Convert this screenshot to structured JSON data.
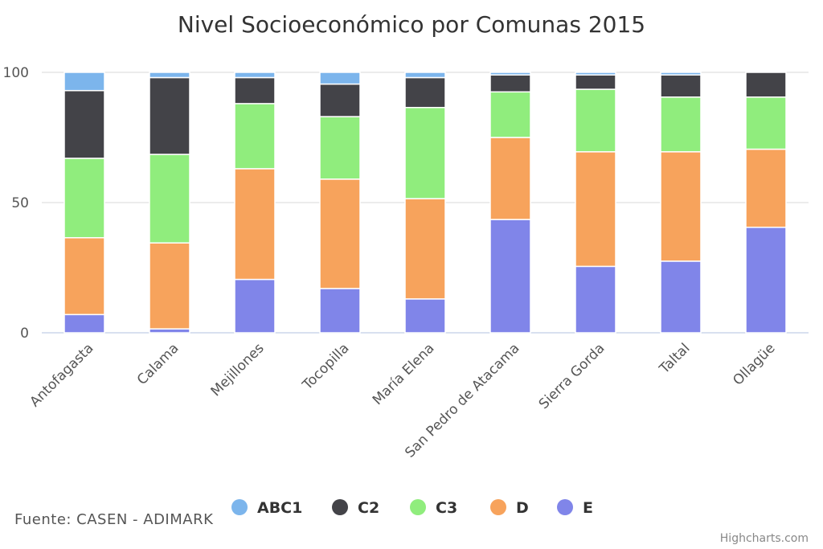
{
  "chart_data": {
    "type": "bar",
    "stacking": "percent",
    "title": "Nivel Socioeconómico por Comunas 2015",
    "categories": [
      "Antofagasta",
      "Calama",
      "Mejillones",
      "Tocopilla",
      "María Elena",
      "San Pedro de Atacama",
      "Sierra Gorda",
      "Taltal",
      "Ollagüe"
    ],
    "ylim": [
      0,
      100
    ],
    "yticks": [
      "0",
      "50",
      "100"
    ],
    "grid": true,
    "legend_position": "bottom",
    "series": [
      {
        "name": "ABC1",
        "color": "#7cb5ec",
        "values": [
          7,
          2,
          2,
          4.5,
          2,
          1,
          1,
          1,
          0
        ]
      },
      {
        "name": "C2",
        "color": "#434348",
        "values": [
          26,
          29.5,
          10,
          12.5,
          11.5,
          6.5,
          5.5,
          8.5,
          9.5
        ]
      },
      {
        "name": "C3",
        "color": "#90ed7d",
        "values": [
          30.5,
          34,
          25,
          24,
          35,
          17.5,
          24,
          21,
          20
        ]
      },
      {
        "name": "D",
        "color": "#f7a35c",
        "values": [
          29.5,
          33,
          42.5,
          42,
          38.5,
          31.5,
          44,
          42,
          30
        ]
      },
      {
        "name": "E",
        "color": "#8085e9",
        "values": [
          7,
          1.5,
          20.5,
          17,
          13,
          43.5,
          25.5,
          27.5,
          40.5
        ]
      }
    ]
  },
  "source": "Fuente: CASEN - ADIMARK",
  "credits": "Highcharts.com"
}
